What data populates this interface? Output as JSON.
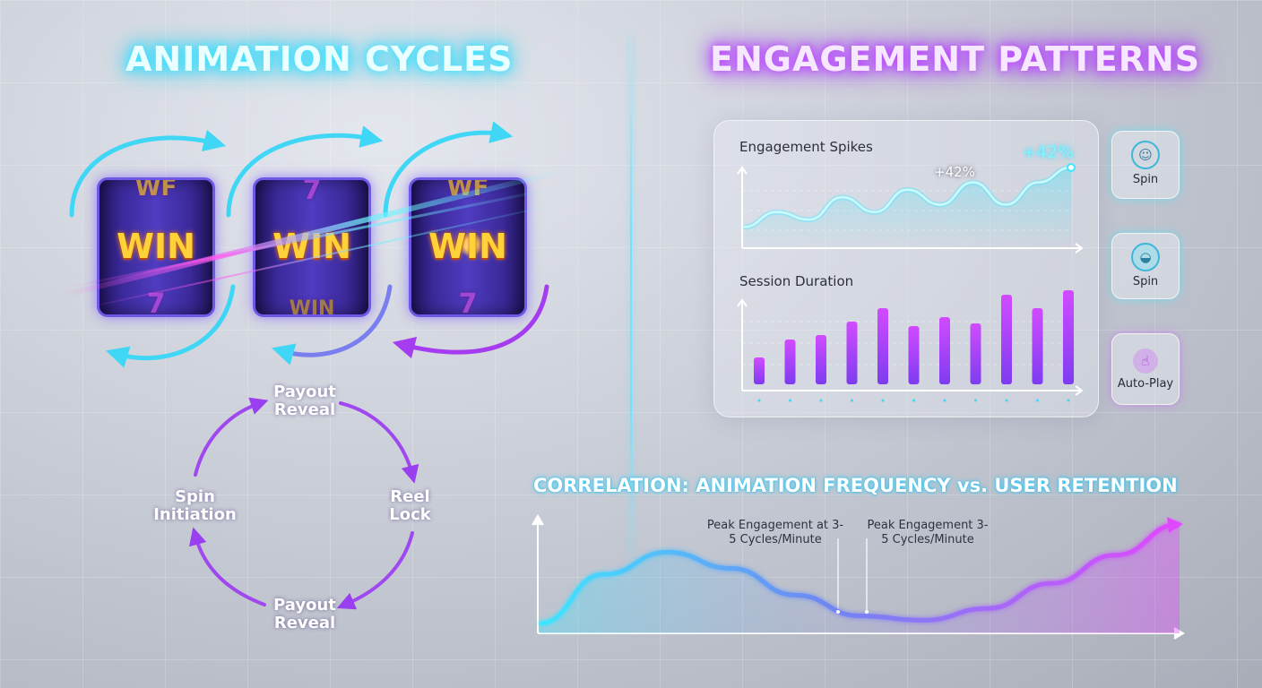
{
  "headings": {
    "left": "ANIMATION CYCLES",
    "right": "ENGAGEMENT PATTERNS"
  },
  "reels": [
    {
      "top": "WF",
      "center": "WIN",
      "bottom": "7"
    },
    {
      "top": "7",
      "center": "WIN",
      "bottom": "WIN"
    },
    {
      "top": "WF",
      "center": "WIN",
      "bottom": "7"
    }
  ],
  "cycle": {
    "stages": [
      "Payout Reveal",
      "Reel Lock",
      "Payout Reveal",
      "Spin Initiation"
    ]
  },
  "panel": {
    "spikes_title": "Engagement Spikes",
    "spike_label": "+42%",
    "spike_label_big": "+42%",
    "duration_title": "Session Duration"
  },
  "buttons": [
    {
      "label": "Spin",
      "icon": "face-icon",
      "color": "#3fe6ff"
    },
    {
      "label": "Spin",
      "icon": "bag-icon",
      "color": "#3fe6ff"
    },
    {
      "label": "Auto-Play",
      "icon": "hand-icon",
      "color": "#c04cff"
    }
  ],
  "correlation": {
    "title": "CORRELATION: ANIMATION FREQUENCY vs. USER RETENTION",
    "annotations": [
      "Peak Engagement at 3-5 Cycles/Minute",
      "Peak Engagement 3-5 Cycles/Minute"
    ]
  },
  "chart_data": [
    {
      "type": "line",
      "title": "Engagement Spikes",
      "x": [
        0,
        1,
        2,
        3,
        4,
        5,
        6,
        7,
        8,
        9,
        10
      ],
      "series": [
        {
          "values": [
            2,
            4,
            3,
            6,
            4,
            7,
            5,
            8,
            5,
            8,
            10
          ]
        }
      ]
    },
    {
      "type": "bar",
      "title": "Session Duration",
      "categories": [
        "1",
        "2",
        "3",
        "4",
        "5",
        "6",
        "7",
        "8",
        "9",
        "10",
        "11"
      ],
      "series": [
        {
          "values": [
            3,
            5,
            5.5,
            7,
            8.5,
            6.5,
            7.5,
            6.8,
            10,
            8.5,
            10.5
          ]
        }
      ]
    },
    {
      "type": "line",
      "title": "CORRELATION: ANIMATION FREQUENCY vs. USER RETENTION",
      "x": [
        0,
        1,
        2,
        3,
        4,
        5,
        6,
        7,
        8,
        9,
        10
      ],
      "series": [
        {
          "values": [
            0.5,
            3.8,
            5.3,
            4.2,
            2.4,
            1.0,
            0.7,
            1.5,
            3.2,
            5.1,
            7.2
          ]
        }
      ]
    }
  ],
  "colors": {
    "cyan": "#3fe6ff",
    "purple": "#b03cff"
  }
}
